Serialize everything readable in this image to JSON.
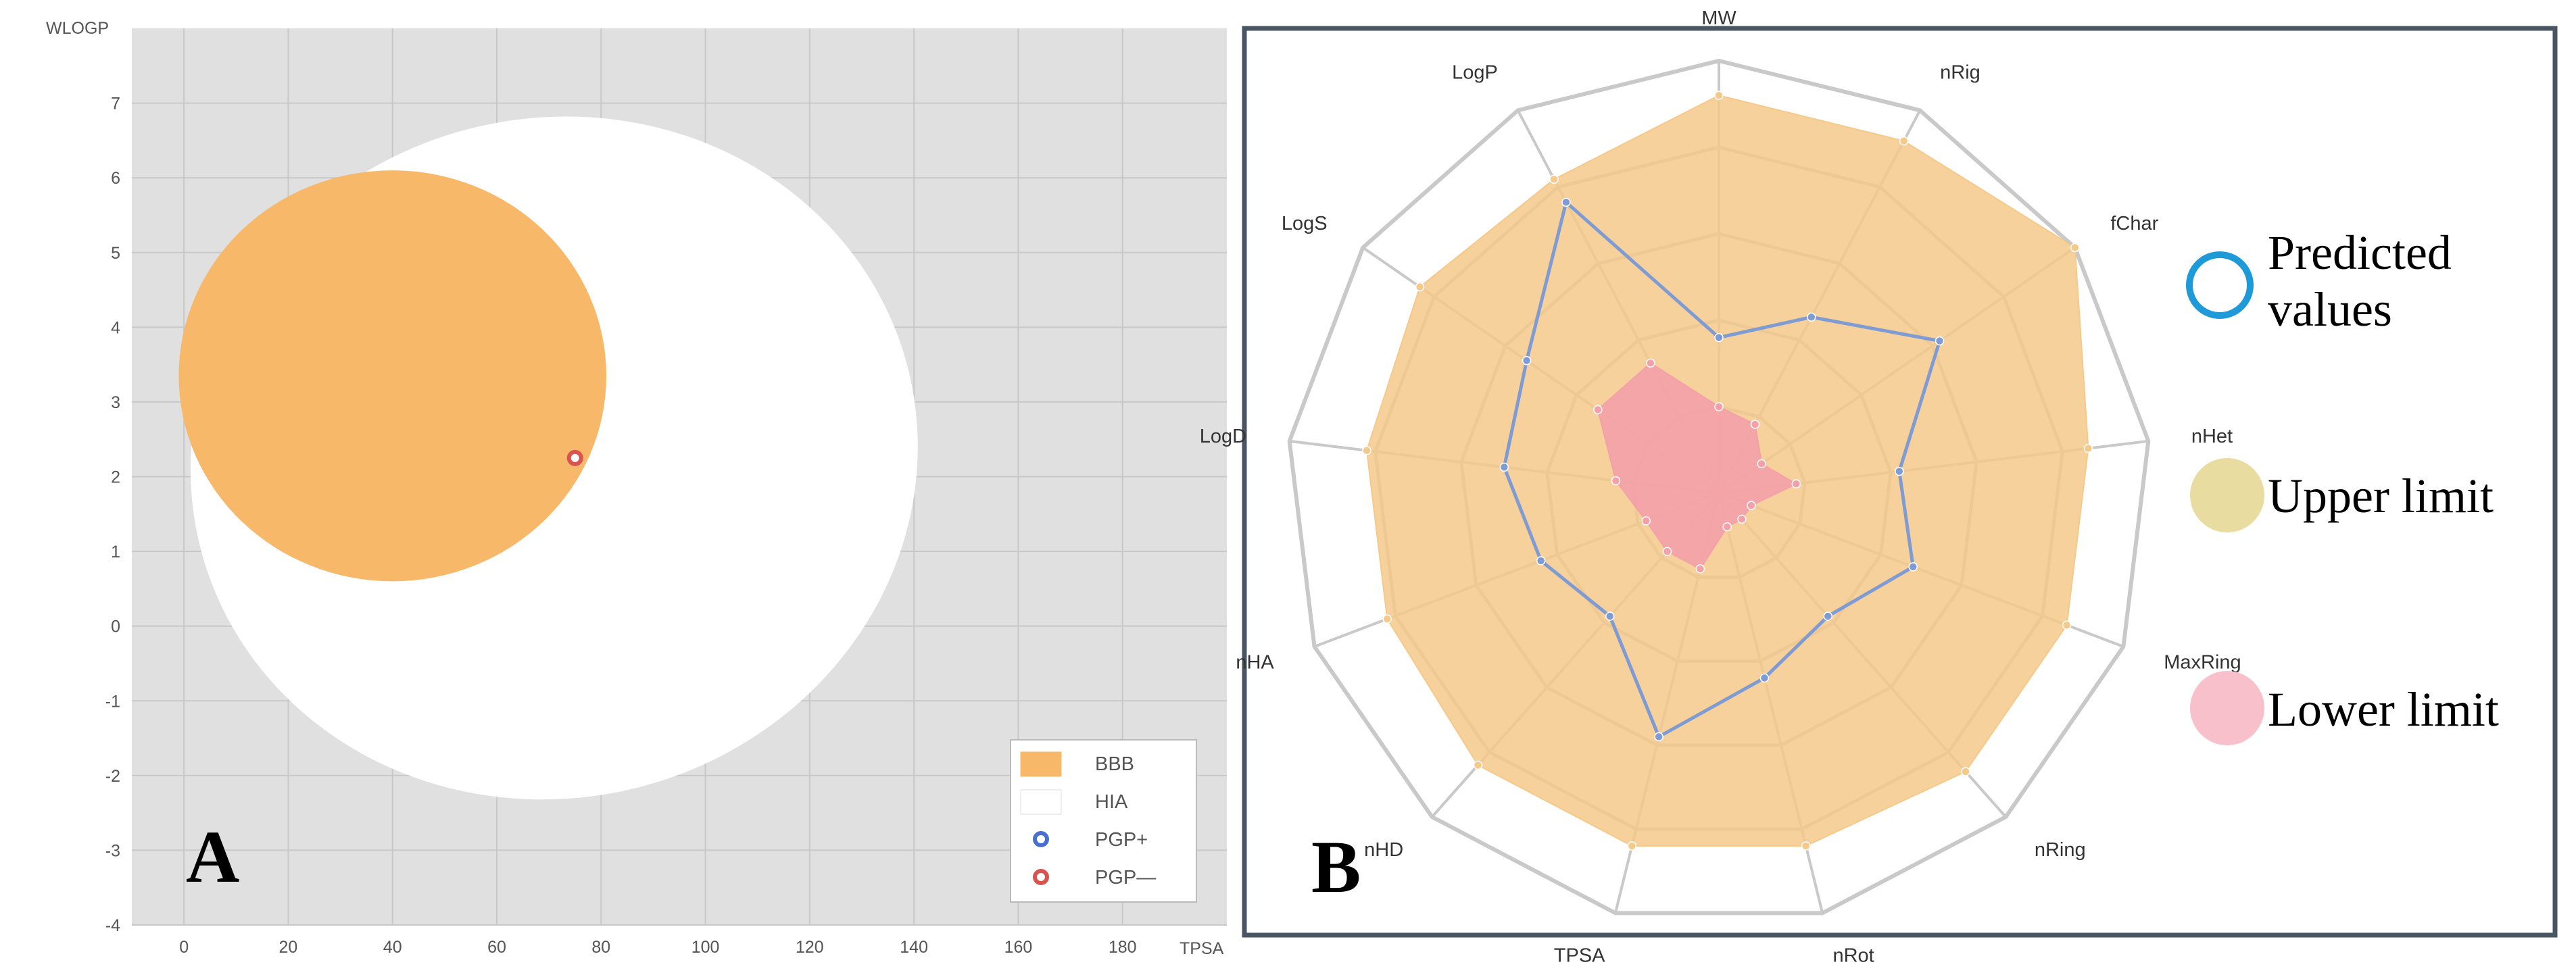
{
  "chart_data": [
    {
      "type": "scatter",
      "panel_label": "A",
      "xlabel": "TPSA",
      "ylabel": "WLOGP",
      "xlim": [
        -10,
        200
      ],
      "ylim": [
        -4,
        8
      ],
      "xticks": [
        0,
        20,
        40,
        60,
        80,
        100,
        120,
        140,
        160,
        180
      ],
      "yticks": [
        -4,
        -3,
        -2,
        -1,
        0,
        1,
        2,
        3,
        4,
        5,
        6,
        7
      ],
      "grid": true,
      "regions": [
        {
          "name": "HIA",
          "shape": "ellipse",
          "center": [
            71,
            2.25
          ],
          "radius_x": 70,
          "radius_y": 4.55,
          "color": "#ffffff"
        },
        {
          "name": "BBB",
          "shape": "ellipse",
          "center": [
            40,
            3.35
          ],
          "radius_x": 41,
          "radius_y": 2.75,
          "color": "#f8b86a"
        }
      ],
      "points": [
        {
          "x": 75,
          "y": 2.25,
          "class": "PGP—",
          "color": "#d9534f"
        }
      ],
      "legend": {
        "placement": "bottom-right",
        "items": [
          {
            "label": "BBB",
            "symbol": "rect",
            "color": "#f8b86a"
          },
          {
            "label": "HIA",
            "symbol": "rect",
            "color": "#ffffff"
          },
          {
            "label": "PGP+",
            "symbol": "circle",
            "color": "#4a6fd1"
          },
          {
            "label": "PGP—",
            "symbol": "circle",
            "color": "#d9534f"
          }
        ]
      }
    },
    {
      "type": "radar",
      "panel_label": "B",
      "axes": [
        "MW",
        "nRig",
        "fChar",
        "nHet",
        "MaxRing",
        "nRing",
        "nRot",
        "TPSA",
        "nHD",
        "nHA",
        "LogD",
        "LogS",
        "LogP"
      ],
      "rmax": 5,
      "rings": 5,
      "series": [
        {
          "name": "Upper limit",
          "values": [
            4.6,
            4.6,
            5.0,
            4.3,
            4.3,
            4.3,
            4.2,
            4.2,
            4.2,
            4.1,
            4.1,
            4.2,
            4.1
          ],
          "color": "#f5c98a"
        },
        {
          "name": "Lower limit",
          "values": [
            1.0,
            0.9,
            0.6,
            0.9,
            0.4,
            0.4,
            0.4,
            0.9,
            0.9,
            0.9,
            1.2,
            1.7,
            1.7
          ],
          "color": "#f4a0a8"
        },
        {
          "name": "Predicted values",
          "values": [
            1.8,
            2.3,
            3.1,
            2.1,
            2.4,
            1.9,
            2.2,
            2.9,
            1.9,
            2.2,
            2.5,
            2.7,
            3.8
          ],
          "color": "#7f9bd3"
        }
      ],
      "legend": [
        {
          "label": "Predicted values",
          "symbol": "ring",
          "color": "#1e9ad9"
        },
        {
          "label": "Upper limit",
          "symbol": "disc",
          "color": "#e8dca1"
        },
        {
          "label": "Lower limit",
          "symbol": "disc",
          "color": "#f7c0cb"
        }
      ]
    }
  ]
}
